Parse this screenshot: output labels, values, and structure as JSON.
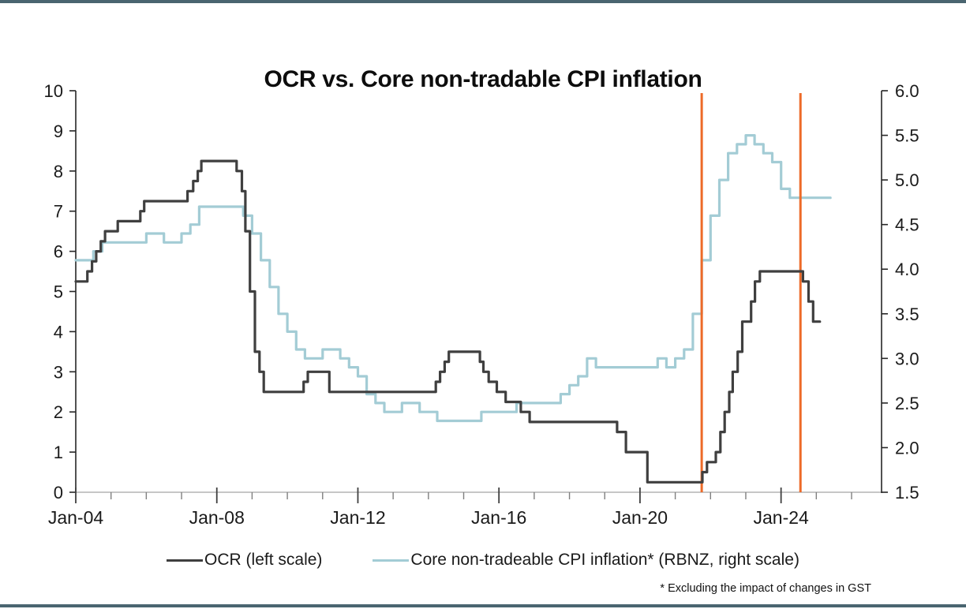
{
  "page": {
    "accent_bar_color": "#4a6570",
    "background_color": "#ffffff"
  },
  "chart": {
    "title": "OCR vs. Core non-tradable CPI inflation",
    "footnote": "* Excluding the impact of changes in GST"
  },
  "chart_data": {
    "type": "line",
    "title": "OCR vs. Core non-tradable CPI inflation",
    "grid": false,
    "legend_position": "bottom",
    "left_axis": {
      "min": 0,
      "max": 10,
      "tick_labels": [
        "0",
        "1",
        "2",
        "3",
        "4",
        "5",
        "6",
        "7",
        "8",
        "9",
        "10"
      ],
      "tick_values": [
        0,
        1,
        2,
        3,
        4,
        5,
        6,
        7,
        8,
        9,
        10
      ]
    },
    "right_axis": {
      "min": 1.5,
      "max": 6.0,
      "tick_labels": [
        "1.5",
        "2.0",
        "2.5",
        "3.0",
        "3.5",
        "4.0",
        "4.5",
        "5.0",
        "5.5",
        "6.0"
      ],
      "tick_values": [
        1.5,
        2.0,
        2.5,
        3.0,
        3.5,
        4.0,
        4.5,
        5.0,
        5.5,
        6.0
      ]
    },
    "x_axis": {
      "start_year": 2004.0,
      "end_year": 2026.85,
      "major_ticks": [
        {
          "year": 2004,
          "label": "Jan-04"
        },
        {
          "year": 2008,
          "label": "Jan-08"
        },
        {
          "year": 2012,
          "label": "Jan-12"
        },
        {
          "year": 2016,
          "label": "Jan-16"
        },
        {
          "year": 2020,
          "label": "Jan-20"
        },
        {
          "year": 2024,
          "label": "Jan-24"
        }
      ],
      "minor_tick_years": [
        2005,
        2006,
        2007,
        2009,
        2010,
        2011,
        2013,
        2014,
        2015,
        2017,
        2018,
        2019,
        2021,
        2022,
        2023,
        2025,
        2026
      ]
    },
    "markers": {
      "color": "#ed6a28",
      "x_years": [
        2021.75,
        2024.55
      ],
      "meaning": "vertical event lines"
    },
    "series": [
      {
        "name": "OCR (left scale)",
        "axis": "left",
        "color": "#3f3f3f",
        "style": "step",
        "points": [
          [
            2004.0,
            5.25
          ],
          [
            2004.33,
            5.5
          ],
          [
            2004.46,
            5.75
          ],
          [
            2004.58,
            6.0
          ],
          [
            2004.71,
            6.25
          ],
          [
            2004.83,
            6.5
          ],
          [
            2005.19,
            6.75
          ],
          [
            2005.83,
            7.0
          ],
          [
            2005.94,
            7.25
          ],
          [
            2007.17,
            7.5
          ],
          [
            2007.33,
            7.75
          ],
          [
            2007.46,
            8.0
          ],
          [
            2007.56,
            8.25
          ],
          [
            2008.56,
            8.0
          ],
          [
            2008.71,
            7.5
          ],
          [
            2008.81,
            6.5
          ],
          [
            2008.94,
            5.0
          ],
          [
            2009.08,
            3.5
          ],
          [
            2009.21,
            3.0
          ],
          [
            2009.33,
            2.5
          ],
          [
            2010.46,
            2.75
          ],
          [
            2010.58,
            3.0
          ],
          [
            2011.19,
            2.5
          ],
          [
            2014.21,
            2.75
          ],
          [
            2014.33,
            3.0
          ],
          [
            2014.46,
            3.25
          ],
          [
            2014.58,
            3.5
          ],
          [
            2015.46,
            3.25
          ],
          [
            2015.56,
            3.0
          ],
          [
            2015.71,
            2.75
          ],
          [
            2015.94,
            2.5
          ],
          [
            2016.19,
            2.25
          ],
          [
            2016.62,
            2.0
          ],
          [
            2016.87,
            1.75
          ],
          [
            2019.35,
            1.5
          ],
          [
            2019.6,
            1.0
          ],
          [
            2020.21,
            0.25
          ],
          [
            2021.77,
            0.5
          ],
          [
            2021.9,
            0.75
          ],
          [
            2022.15,
            1.0
          ],
          [
            2022.28,
            1.5
          ],
          [
            2022.4,
            2.0
          ],
          [
            2022.53,
            2.5
          ],
          [
            2022.63,
            3.0
          ],
          [
            2022.77,
            3.5
          ],
          [
            2022.9,
            4.25
          ],
          [
            2023.15,
            4.75
          ],
          [
            2023.26,
            5.25
          ],
          [
            2023.4,
            5.5
          ],
          [
            2024.62,
            5.25
          ],
          [
            2024.78,
            4.75
          ],
          [
            2024.91,
            4.25
          ],
          [
            2025.1,
            4.25
          ]
        ]
      },
      {
        "name": "Core non-tradeable CPI inflation* (RBNZ, right scale)",
        "axis": "right",
        "color": "#a3ccd5",
        "style": "step",
        "points": [
          [
            2004.0,
            4.1
          ],
          [
            2004.25,
            4.1
          ],
          [
            2004.5,
            4.2
          ],
          [
            2004.75,
            4.3
          ],
          [
            2005.0,
            4.3
          ],
          [
            2005.25,
            4.3
          ],
          [
            2005.5,
            4.3
          ],
          [
            2005.75,
            4.3
          ],
          [
            2006.0,
            4.4
          ],
          [
            2006.25,
            4.4
          ],
          [
            2006.5,
            4.3
          ],
          [
            2006.75,
            4.3
          ],
          [
            2007.0,
            4.4
          ],
          [
            2007.25,
            4.5
          ],
          [
            2007.5,
            4.7
          ],
          [
            2007.75,
            4.7
          ],
          [
            2008.0,
            4.7
          ],
          [
            2008.25,
            4.7
          ],
          [
            2008.5,
            4.7
          ],
          [
            2008.75,
            4.6
          ],
          [
            2009.0,
            4.4
          ],
          [
            2009.25,
            4.1
          ],
          [
            2009.5,
            3.8
          ],
          [
            2009.75,
            3.5
          ],
          [
            2010.0,
            3.3
          ],
          [
            2010.25,
            3.1
          ],
          [
            2010.5,
            3.0
          ],
          [
            2010.75,
            3.0
          ],
          [
            2011.0,
            3.1
          ],
          [
            2011.25,
            3.1
          ],
          [
            2011.5,
            3.0
          ],
          [
            2011.75,
            2.9
          ],
          [
            2012.0,
            2.8
          ],
          [
            2012.25,
            2.6
          ],
          [
            2012.5,
            2.5
          ],
          [
            2012.75,
            2.4
          ],
          [
            2013.0,
            2.4
          ],
          [
            2013.25,
            2.5
          ],
          [
            2013.5,
            2.5
          ],
          [
            2013.75,
            2.4
          ],
          [
            2014.0,
            2.4
          ],
          [
            2014.25,
            2.3
          ],
          [
            2014.5,
            2.3
          ],
          [
            2014.75,
            2.3
          ],
          [
            2015.0,
            2.3
          ],
          [
            2015.25,
            2.3
          ],
          [
            2015.5,
            2.4
          ],
          [
            2015.75,
            2.4
          ],
          [
            2016.0,
            2.4
          ],
          [
            2016.25,
            2.4
          ],
          [
            2016.5,
            2.5
          ],
          [
            2016.75,
            2.5
          ],
          [
            2017.0,
            2.5
          ],
          [
            2017.25,
            2.5
          ],
          [
            2017.5,
            2.5
          ],
          [
            2017.75,
            2.6
          ],
          [
            2018.0,
            2.7
          ],
          [
            2018.25,
            2.8
          ],
          [
            2018.5,
            3.0
          ],
          [
            2018.75,
            2.9
          ],
          [
            2019.0,
            2.9
          ],
          [
            2019.25,
            2.9
          ],
          [
            2019.5,
            2.9
          ],
          [
            2019.75,
            2.9
          ],
          [
            2020.0,
            2.9
          ],
          [
            2020.25,
            2.9
          ],
          [
            2020.5,
            3.0
          ],
          [
            2020.75,
            2.9
          ],
          [
            2021.0,
            3.0
          ],
          [
            2021.25,
            3.1
          ],
          [
            2021.5,
            3.5
          ],
          [
            2021.75,
            4.1
          ],
          [
            2022.0,
            4.6
          ],
          [
            2022.25,
            5.0
          ],
          [
            2022.5,
            5.3
          ],
          [
            2022.75,
            5.4
          ],
          [
            2023.0,
            5.5
          ],
          [
            2023.25,
            5.4
          ],
          [
            2023.5,
            5.3
          ],
          [
            2023.75,
            5.2
          ],
          [
            2024.0,
            4.9
          ],
          [
            2024.25,
            4.8
          ],
          [
            2024.5,
            4.8
          ],
          [
            2024.75,
            4.8
          ],
          [
            2025.0,
            4.8
          ],
          [
            2025.4,
            4.8
          ]
        ]
      }
    ]
  }
}
